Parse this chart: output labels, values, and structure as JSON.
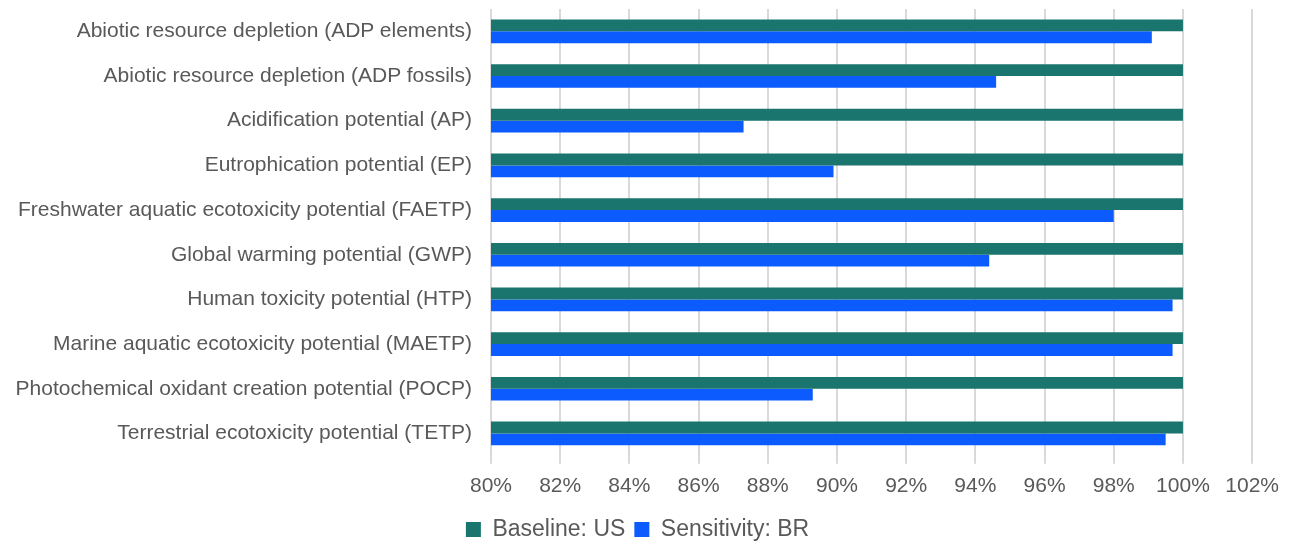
{
  "chart_data": {
    "type": "bar",
    "orientation": "horizontal",
    "categories": [
      "Abiotic resource depletion (ADP elements)",
      "Abiotic resource depletion (ADP fossils)",
      "Acidification potential (AP)",
      "Eutrophication potential (EP)",
      "Freshwater aquatic ecotoxicity potential (FAETP)",
      "Global warming potential (GWP)",
      "Human toxicity potential (HTP)",
      "Marine aquatic ecotoxicity potential (MAETP)",
      "Photochemical oxidant creation potential (POCP)",
      "Terrestrial ecotoxicity potential (TETP)"
    ],
    "series": [
      {
        "name": "Baseline: US",
        "color": "#1a756e",
        "values": [
          100,
          100,
          100,
          100,
          100,
          100,
          100,
          100,
          100,
          100
        ]
      },
      {
        "name": "Sensitivity: BR",
        "color": "#0b5bff",
        "values": [
          99.1,
          94.6,
          87.3,
          89.9,
          98.0,
          94.4,
          99.7,
          99.7,
          89.3,
          99.5
        ]
      }
    ],
    "xlim": [
      80,
      102
    ],
    "xticks": [
      {
        "value": 80,
        "label": "80%"
      },
      {
        "value": 82,
        "label": "82%"
      },
      {
        "value": 84,
        "label": "84%"
      },
      {
        "value": 86,
        "label": "86%"
      },
      {
        "value": 88,
        "label": "88%"
      },
      {
        "value": 90,
        "label": "90%"
      },
      {
        "value": 92,
        "label": "92%"
      },
      {
        "value": 94,
        "label": "94%"
      },
      {
        "value": 96,
        "label": "96%"
      },
      {
        "value": 98,
        "label": "98%"
      },
      {
        "value": 100,
        "label": "100%"
      },
      {
        "value": 102,
        "label": "102%"
      }
    ],
    "grid": "x",
    "legend": "bottom"
  }
}
